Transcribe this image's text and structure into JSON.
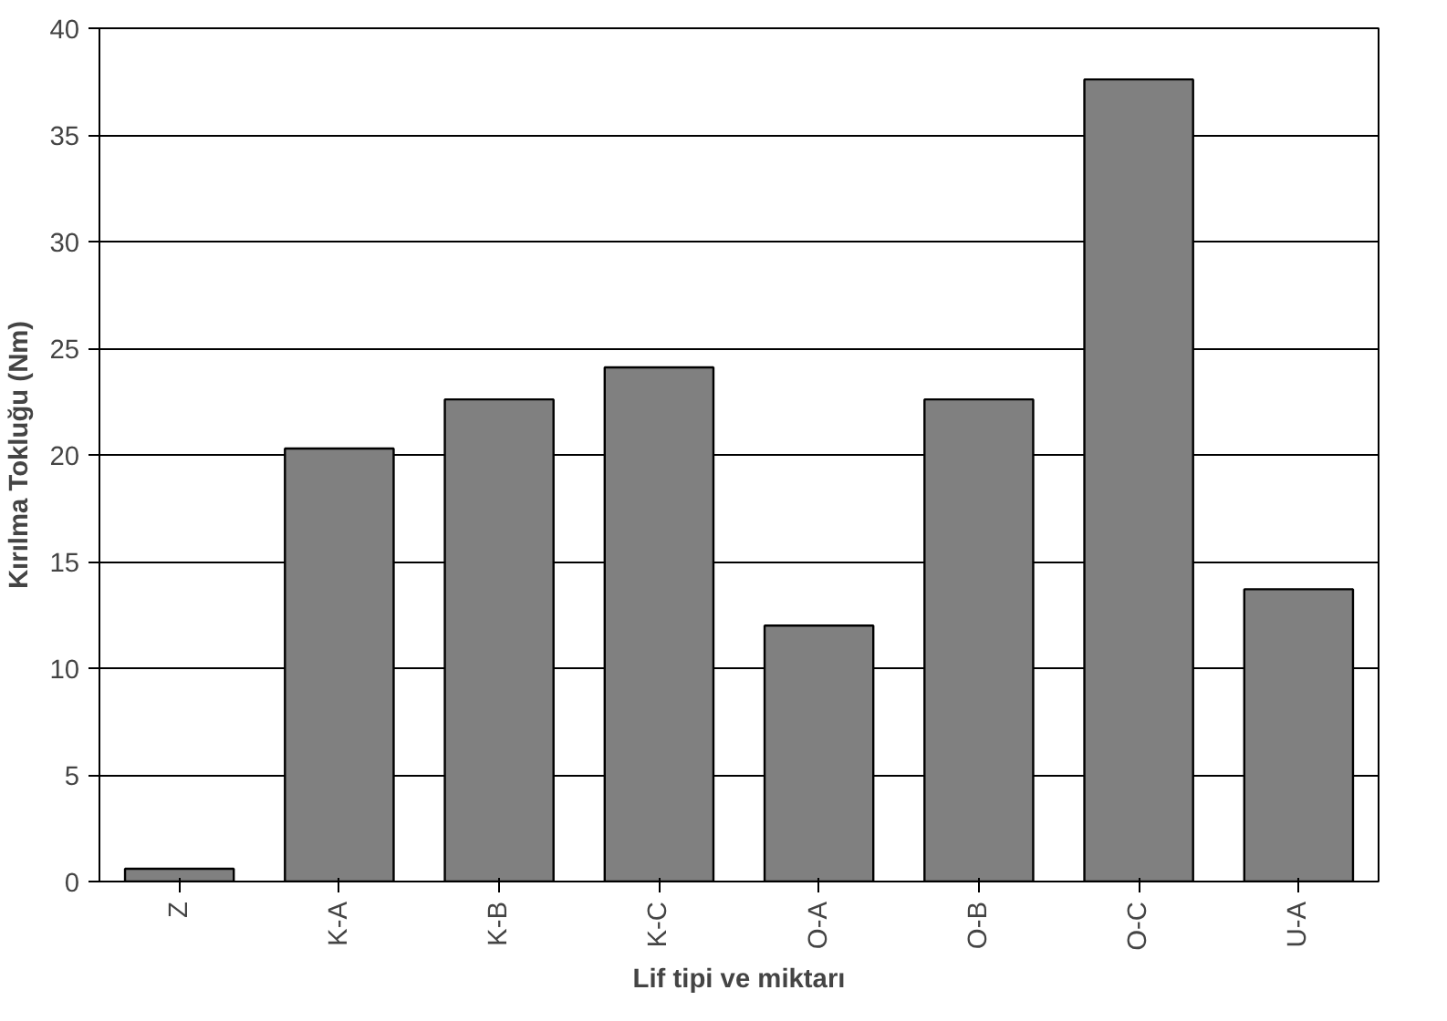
{
  "chart_data": {
    "type": "bar",
    "xlabel": "Lif tipi ve miktarı",
    "ylabel": "Kırılma Tokluğu (Nm)",
    "categories": [
      "Z",
      "K-A",
      "K-B",
      "K-C",
      "O-A",
      "O-B",
      "O-C",
      "U-A"
    ],
    "values": [
      0.6,
      20.3,
      22.6,
      24.1,
      12.0,
      22.6,
      37.6,
      13.7
    ],
    "color": "#808080",
    "ylim": [
      0,
      40
    ],
    "yticks": [
      0,
      5,
      10,
      15,
      20,
      25,
      30,
      35,
      40
    ],
    "grid": "y"
  }
}
